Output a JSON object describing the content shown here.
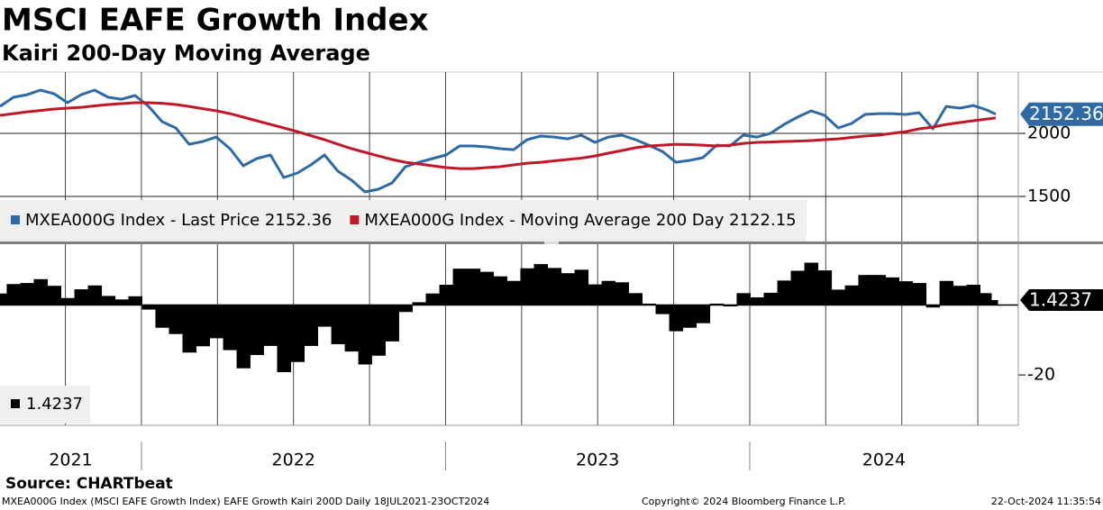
{
  "title": "MSCI EAFE Growth Index",
  "subtitle": "Kairi 200-Day Moving Average",
  "source": "Source: CHARTbeat",
  "footer": {
    "left": "MXEA000G Index (MSCI EAFE Growth Index) EAFE Growth Kairi 200D  Daily 18JUL2021-23OCT2024",
    "center": "Copyright© 2024 Bloomberg Finance L.P.",
    "right": "22-Oct-2024 11:35:54"
  },
  "time_axis": {
    "xlim": [
      2021.535,
      2024.883
    ],
    "xticks": [
      2021.75,
      2022,
      2022.25,
      2022.5,
      2022.75,
      2023,
      2023.25,
      2023.5,
      2023.75,
      2024,
      2024.25,
      2024.5,
      2024.75
    ],
    "year_labels": [
      "2021",
      "2022",
      "2023",
      "2024"
    ],
    "x": [
      2021.535,
      2021.579,
      2021.624,
      2021.668,
      2021.713,
      2021.757,
      2021.802,
      2021.846,
      2021.891,
      2021.935,
      2021.979,
      2022.024,
      2022.068,
      2022.113,
      2022.157,
      2022.202,
      2022.246,
      2022.291,
      2022.335,
      2022.379,
      2022.424,
      2022.468,
      2022.513,
      2022.557,
      2022.602,
      2022.646,
      2022.691,
      2022.735,
      2022.779,
      2022.824,
      2022.868,
      2022.913,
      2022.957,
      2023.002,
      2023.046,
      2023.091,
      2023.135,
      2023.179,
      2023.224,
      2023.268,
      2023.313,
      2023.357,
      2023.402,
      2023.446,
      2023.491,
      2023.535,
      2023.579,
      2023.624,
      2023.668,
      2023.713,
      2023.757,
      2023.802,
      2023.846,
      2023.891,
      2023.935,
      2023.979,
      2024.024,
      2024.068,
      2024.113,
      2024.157,
      2024.202,
      2024.246,
      2024.291,
      2024.335,
      2024.379,
      2024.424,
      2024.468,
      2024.513,
      2024.557,
      2024.602,
      2024.646,
      2024.691,
      2024.735,
      2024.779,
      2024.809
    ]
  },
  "chart_data": [
    {
      "type": "line",
      "ylim": [
        1143,
        2486
      ],
      "yticks": [
        1500,
        2000
      ],
      "grid": true,
      "series": [
        {
          "name": "MXEA000G Index - Last Price 2152.36",
          "color": "#2f6aa5",
          "values": [
            2214,
            2286,
            2307,
            2343,
            2314,
            2243,
            2307,
            2343,
            2286,
            2271,
            2300,
            2214,
            2093,
            2043,
            1914,
            1936,
            1971,
            1879,
            1743,
            1800,
            1829,
            1650,
            1686,
            1750,
            1829,
            1700,
            1629,
            1536,
            1557,
            1607,
            1736,
            1771,
            1800,
            1829,
            1900,
            1900,
            1893,
            1879,
            1871,
            1950,
            1979,
            1971,
            1957,
            1986,
            1929,
            1971,
            1986,
            1950,
            1907,
            1857,
            1771,
            1786,
            1807,
            1907,
            1900,
            1986,
            1971,
            2000,
            2071,
            2129,
            2179,
            2143,
            2043,
            2079,
            2150,
            2157,
            2157,
            2150,
            2164,
            2036,
            2214,
            2200,
            2221,
            2186,
            2152.36
          ]
        },
        {
          "name": "MXEA000G Index - Moving Average 200 Day 2122.15",
          "color": "#c0182a",
          "values": [
            2143,
            2157,
            2171,
            2182,
            2193,
            2200,
            2207,
            2218,
            2229,
            2236,
            2243,
            2243,
            2239,
            2229,
            2214,
            2196,
            2179,
            2157,
            2129,
            2100,
            2071,
            2043,
            2014,
            1982,
            1950,
            1914,
            1879,
            1850,
            1821,
            1793,
            1771,
            1757,
            1743,
            1729,
            1721,
            1721,
            1729,
            1736,
            1750,
            1764,
            1771,
            1782,
            1793,
            1804,
            1821,
            1843,
            1864,
            1886,
            1900,
            1907,
            1914,
            1911,
            1907,
            1900,
            1907,
            1921,
            1929,
            1932,
            1936,
            1939,
            1943,
            1950,
            1957,
            1968,
            1979,
            1986,
            2000,
            2014,
            2036,
            2050,
            2071,
            2086,
            2100,
            2114,
            2122.15
          ]
        }
      ]
    },
    {
      "type": "bar",
      "ylim": [
        -34.4,
        17.4
      ],
      "yticks": [
        -20
      ],
      "series": [
        {
          "color": "#000000",
          "values": [
            3.3,
            6.0,
            6.3,
            7.4,
            5.5,
            2.0,
            4.5,
            5.6,
            2.6,
            1.6,
            2.5,
            -1.3,
            -6.5,
            -8.3,
            -13.6,
            -11.8,
            -9.5,
            -12.9,
            -18.1,
            -14.3,
            -11.7,
            -19.2,
            -16.3,
            -11.7,
            -6.2,
            -11.2,
            -13.3,
            -17.0,
            -14.5,
            -10.4,
            -2.0,
            0.8,
            3.3,
            5.8,
            10.4,
            10.4,
            9.5,
            8.2,
            6.9,
            10.5,
            11.7,
            10.6,
            9.1,
            10.1,
            5.9,
            6.9,
            6.5,
            3.4,
            0.4,
            -2.6,
            -7.5,
            -6.5,
            -5.2,
            0.4,
            -0.4,
            3.4,
            2.2,
            3.5,
            7.0,
            9.8,
            12.1,
            9.9,
            4.4,
            5.6,
            8.6,
            8.6,
            7.9,
            6.8,
            6.3,
            -0.7,
            6.9,
            5.5,
            5.8,
            3.4,
            1.4237
          ]
        }
      ]
    }
  ]
}
